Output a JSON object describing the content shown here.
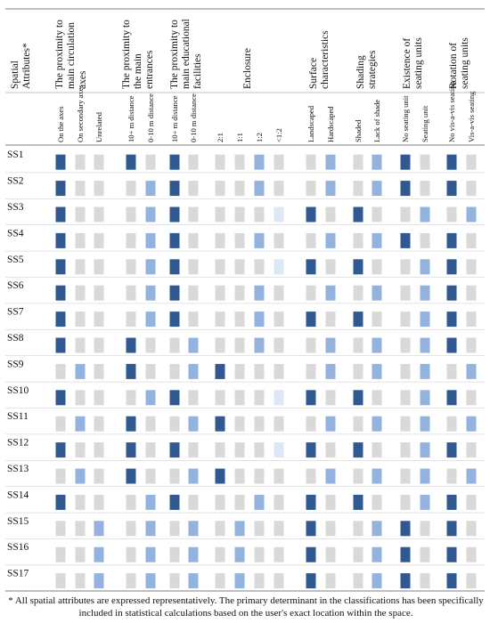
{
  "table": {
    "corner_title": "Spatial Attributes*",
    "colors": {
      "dark": "#2f5990",
      "medium": "#93b3de",
      "light": "#dde8f6",
      "grey": "#d9d9d9"
    },
    "groups": [
      {
        "title": "The proximity to main circulation axes",
        "columns": [
          "On the axes",
          "On secondary axes",
          "Unrelated"
        ]
      },
      {
        "title": "The proximity to the main entrances",
        "columns": [
          "10+ m distance",
          "0-10 m distance"
        ]
      },
      {
        "title": "The proximity to main educational facilities",
        "columns": [
          "10+ m distance",
          "0-10 m distance"
        ]
      },
      {
        "title": "Enclosure",
        "columns": [
          "2:1",
          "1:1",
          "1:2",
          "<1:2"
        ]
      },
      {
        "title": "Surface characteristics",
        "columns": [
          "Landscaped",
          "Hardscaped"
        ]
      },
      {
        "title": "Shading strategies",
        "columns": [
          "Shaded",
          "Lack of shade"
        ]
      },
      {
        "title": "Existence of seating units",
        "columns": [
          "No seating unit",
          "Seating unit"
        ]
      },
      {
        "title": "Rotation of seating units",
        "columns": [
          "No vis-a-vis seating",
          "Vis-a-vis seating"
        ]
      }
    ],
    "rows": [
      {
        "label": "SS1",
        "cells": [
          "D",
          "G",
          "G",
          "D",
          "G",
          "D",
          "G",
          "G",
          "G",
          "M",
          "G",
          "G",
          "M",
          "G",
          "M",
          "D",
          "G",
          "D",
          "G"
        ]
      },
      {
        "label": "SS2",
        "cells": [
          "D",
          "G",
          "G",
          "G",
          "M",
          "D",
          "G",
          "G",
          "G",
          "M",
          "G",
          "G",
          "M",
          "G",
          "M",
          "D",
          "G",
          "D",
          "G"
        ]
      },
      {
        "title_hint": "",
        "label": "SS3",
        "cells": [
          "D",
          "G",
          "G",
          "G",
          "M",
          "D",
          "G",
          "G",
          "G",
          "G",
          "L",
          "D",
          "G",
          "D",
          "G",
          "G",
          "M",
          "G",
          "M"
        ]
      },
      {
        "label": "SS4",
        "cells": [
          "D",
          "G",
          "G",
          "G",
          "M",
          "D",
          "G",
          "G",
          "G",
          "M",
          "G",
          "G",
          "M",
          "G",
          "M",
          "D",
          "G",
          "D",
          "G"
        ]
      },
      {
        "label": "SS5",
        "cells": [
          "D",
          "G",
          "G",
          "G",
          "M",
          "D",
          "G",
          "G",
          "G",
          "G",
          "L",
          "D",
          "G",
          "D",
          "G",
          "G",
          "M",
          "D",
          "G"
        ]
      },
      {
        "label": "SS6",
        "cells": [
          "D",
          "G",
          "G",
          "G",
          "M",
          "D",
          "G",
          "G",
          "G",
          "M",
          "G",
          "G",
          "M",
          "G",
          "M",
          "G",
          "M",
          "D",
          "G"
        ]
      },
      {
        "label": "SS7",
        "cells": [
          "D",
          "G",
          "G",
          "G",
          "M",
          "D",
          "G",
          "G",
          "G",
          "M",
          "G",
          "D",
          "G",
          "D",
          "G",
          "G",
          "M",
          "D",
          "G"
        ]
      },
      {
        "label": "SS8",
        "cells": [
          "D",
          "G",
          "G",
          "D",
          "G",
          "G",
          "M",
          "G",
          "G",
          "M",
          "G",
          "G",
          "M",
          "G",
          "M",
          "G",
          "M",
          "D",
          "G"
        ]
      },
      {
        "label": "SS9",
        "cells": [
          "G",
          "M",
          "G",
          "D",
          "G",
          "G",
          "M",
          "D",
          "G",
          "G",
          "G",
          "G",
          "M",
          "G",
          "M",
          "G",
          "M",
          "G",
          "M"
        ]
      },
      {
        "label": "SS10",
        "cells": [
          "D",
          "G",
          "G",
          "G",
          "M",
          "D",
          "G",
          "G",
          "G",
          "G",
          "L",
          "D",
          "G",
          "D",
          "G",
          "G",
          "M",
          "D",
          "G"
        ]
      },
      {
        "label": "SS11",
        "cells": [
          "G",
          "M",
          "G",
          "D",
          "G",
          "G",
          "M",
          "D",
          "G",
          "G",
          "G",
          "G",
          "M",
          "G",
          "M",
          "G",
          "M",
          "G",
          "M"
        ]
      },
      {
        "label": "SS12",
        "cells": [
          "D",
          "G",
          "G",
          "D",
          "G",
          "D",
          "G",
          "G",
          "G",
          "G",
          "L",
          "D",
          "G",
          "D",
          "G",
          "G",
          "M",
          "D",
          "G"
        ]
      },
      {
        "label": "SS13",
        "cells": [
          "G",
          "M",
          "G",
          "D",
          "G",
          "G",
          "M",
          "D",
          "G",
          "G",
          "G",
          "G",
          "M",
          "G",
          "M",
          "G",
          "M",
          "G",
          "M"
        ]
      },
      {
        "label": "SS14",
        "cells": [
          "D",
          "G",
          "G",
          "G",
          "M",
          "D",
          "G",
          "G",
          "G",
          "M",
          "G",
          "D",
          "G",
          "D",
          "G",
          "G",
          "M",
          "D",
          "G"
        ]
      },
      {
        "label": "SS15",
        "cells": [
          "G",
          "G",
          "M",
          "G",
          "M",
          "G",
          "M",
          "G",
          "M",
          "G",
          "G",
          "D",
          "G",
          "G",
          "M",
          "D",
          "G",
          "D",
          "G"
        ]
      },
      {
        "label": "SS16",
        "cells": [
          "G",
          "G",
          "M",
          "G",
          "M",
          "G",
          "M",
          "G",
          "M",
          "G",
          "G",
          "D",
          "G",
          "G",
          "M",
          "D",
          "G",
          "D",
          "G"
        ]
      },
      {
        "label": "SS17",
        "cells": [
          "G",
          "G",
          "M",
          "G",
          "M",
          "G",
          "M",
          "G",
          "M",
          "G",
          "G",
          "D",
          "G",
          "G",
          "M",
          "D",
          "G",
          "D",
          "G"
        ]
      }
    ],
    "footnote": "* All spatial attributes are expressed representatively. The primary determinant in the classifications has been specifically included in statistical calculations based on the user's exact location within the space."
  }
}
